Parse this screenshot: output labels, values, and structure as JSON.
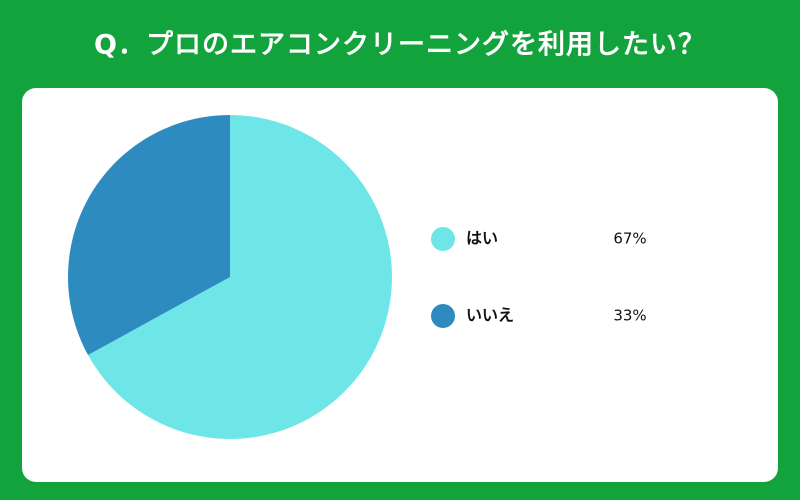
{
  "chart_data": {
    "type": "pie",
    "title": "Q．プロのエアコンクリーニングを利用したい？",
    "categories": [
      "はい",
      "いいえ"
    ],
    "values": [
      67,
      33
    ],
    "value_labels": [
      "67%",
      "33%"
    ],
    "colors": [
      "#6ee6e8",
      "#2e8bbf"
    ]
  }
}
